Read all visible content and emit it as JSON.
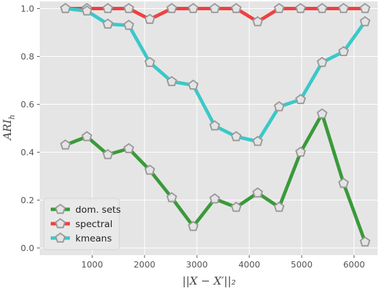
{
  "chart_data": {
    "type": "line",
    "xlabel": "||X − X′||₂",
    "ylabel": "ARI_h",
    "xlim": [
      0,
      6450
    ],
    "ylim": [
      -0.03,
      1.03
    ],
    "xticks": [
      1000,
      2000,
      3000,
      4000,
      5000,
      6000
    ],
    "yticks": [
      0.0,
      0.2,
      0.4,
      0.6,
      0.8,
      1.0
    ],
    "grid": true,
    "legend_position": "lower-left",
    "marker": "pentagon",
    "x": [
      490,
      900,
      1300,
      1700,
      2100,
      2520,
      2930,
      3340,
      3750,
      4160,
      4570,
      4980,
      5390,
      5800,
      6210
    ],
    "series": [
      {
        "name": "dom. sets",
        "color": "#3a9a3a",
        "values": [
          0.43,
          0.465,
          0.39,
          0.415,
          0.325,
          0.21,
          0.09,
          0.205,
          0.17,
          0.23,
          0.17,
          0.4,
          0.56,
          0.27,
          0.025
        ]
      },
      {
        "name": "spectral",
        "color": "#f04040",
        "values": [
          1.0,
          1.0,
          1.0,
          1.0,
          0.955,
          1.0,
          1.0,
          1.0,
          1.0,
          0.945,
          1.0,
          1.0,
          1.0,
          1.0,
          1.0
        ]
      },
      {
        "name": "kmeans",
        "color": "#3cc8c8",
        "values": [
          1.0,
          0.99,
          0.935,
          0.93,
          0.775,
          0.695,
          0.68,
          0.51,
          0.465,
          0.445,
          0.59,
          0.62,
          0.775,
          0.82,
          0.945
        ]
      }
    ]
  }
}
